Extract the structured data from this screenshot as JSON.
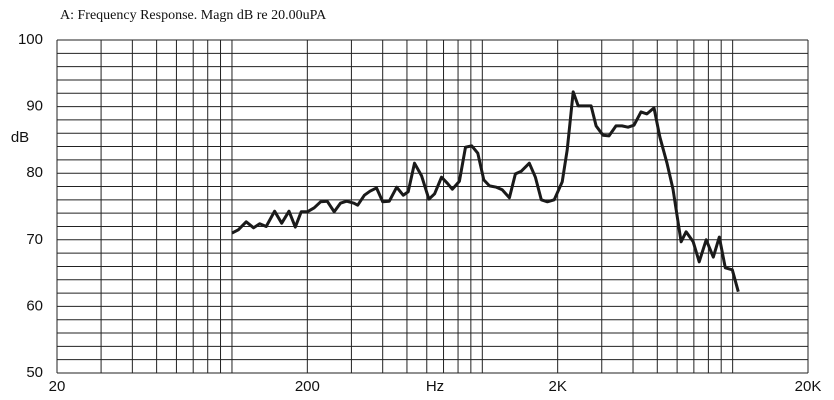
{
  "chart_data": {
    "type": "line",
    "title": "A: Frequency Response. Magn dB re 20.00uPA",
    "x_label": "Hz",
    "y_label": "dB",
    "x_log": true,
    "grid": true,
    "color": "#1a1a1a",
    "xlim": [
      20,
      20000
    ],
    "ylim": [
      50,
      100
    ],
    "xticks": [
      20,
      200,
      {
        "value": 2000,
        "label": "2K"
      },
      {
        "value": 20000,
        "label": "20K"
      }
    ],
    "yticks": [
      50,
      60,
      70,
      80,
      90,
      100
    ],
    "x_minor_grid": [
      30,
      40,
      50,
      60,
      70,
      80,
      90,
      100,
      300,
      400,
      500,
      600,
      700,
      800,
      900,
      1000,
      3000,
      4000,
      5000,
      6000,
      7000,
      8000,
      9000,
      10000
    ],
    "y_minor_grid": [
      52,
      54,
      56,
      58,
      62,
      64,
      66,
      68,
      72,
      74,
      76,
      78,
      82,
      84,
      86,
      88,
      92,
      94,
      96,
      98
    ],
    "x": [
      100,
      106,
      114,
      122,
      129,
      137,
      148,
      158,
      169,
      179,
      189,
      200,
      213,
      226,
      240,
      256,
      271,
      287,
      307,
      318,
      338,
      356,
      378,
      400,
      425,
      455,
      483,
      506,
      536,
      572,
      612,
      645,
      687,
      725,
      759,
      810,
      857,
      908,
      959,
      1014,
      1068,
      1138,
      1201,
      1283,
      1356,
      1432,
      1541,
      1629,
      1721,
      1820,
      1938,
      2085,
      2184,
      2308,
      2416,
      2553,
      2719,
      2847,
      3036,
      3206,
      3420,
      3614,
      3818,
      4035,
      4303,
      4544,
      4850,
      5124,
      5466,
      5777,
      6222,
      6517,
      6956,
      7349,
      7841,
      8372,
      8846,
      9346,
      9973,
      10535
    ],
    "values": [
      71.0,
      71.5,
      72.7,
      71.8,
      72.4,
      72.0,
      74.3,
      72.5,
      74.3,
      71.9,
      74.2,
      74.2,
      74.8,
      75.7,
      75.8,
      74.2,
      75.5,
      75.8,
      75.5,
      75.2,
      76.7,
      77.3,
      77.8,
      75.7,
      75.8,
      77.9,
      76.7,
      77.2,
      81.5,
      79.6,
      76.1,
      76.9,
      79.4,
      78.5,
      77.6,
      78.8,
      83.9,
      84.1,
      83.0,
      79.0,
      78.1,
      77.9,
      77.5,
      76.3,
      79.9,
      80.3,
      81.5,
      79.4,
      76.0,
      75.7,
      76.0,
      78.7,
      83.5,
      92.2,
      90.1,
      90.1,
      90.1,
      87.1,
      85.7,
      85.6,
      87.1,
      87.1,
      86.9,
      87.2,
      89.2,
      88.9,
      89.8,
      85.4,
      81.5,
      77.6,
      69.7,
      71.2,
      69.7,
      66.7,
      70.0,
      67.4,
      70.4,
      65.8,
      65.5,
      62.2
    ]
  }
}
